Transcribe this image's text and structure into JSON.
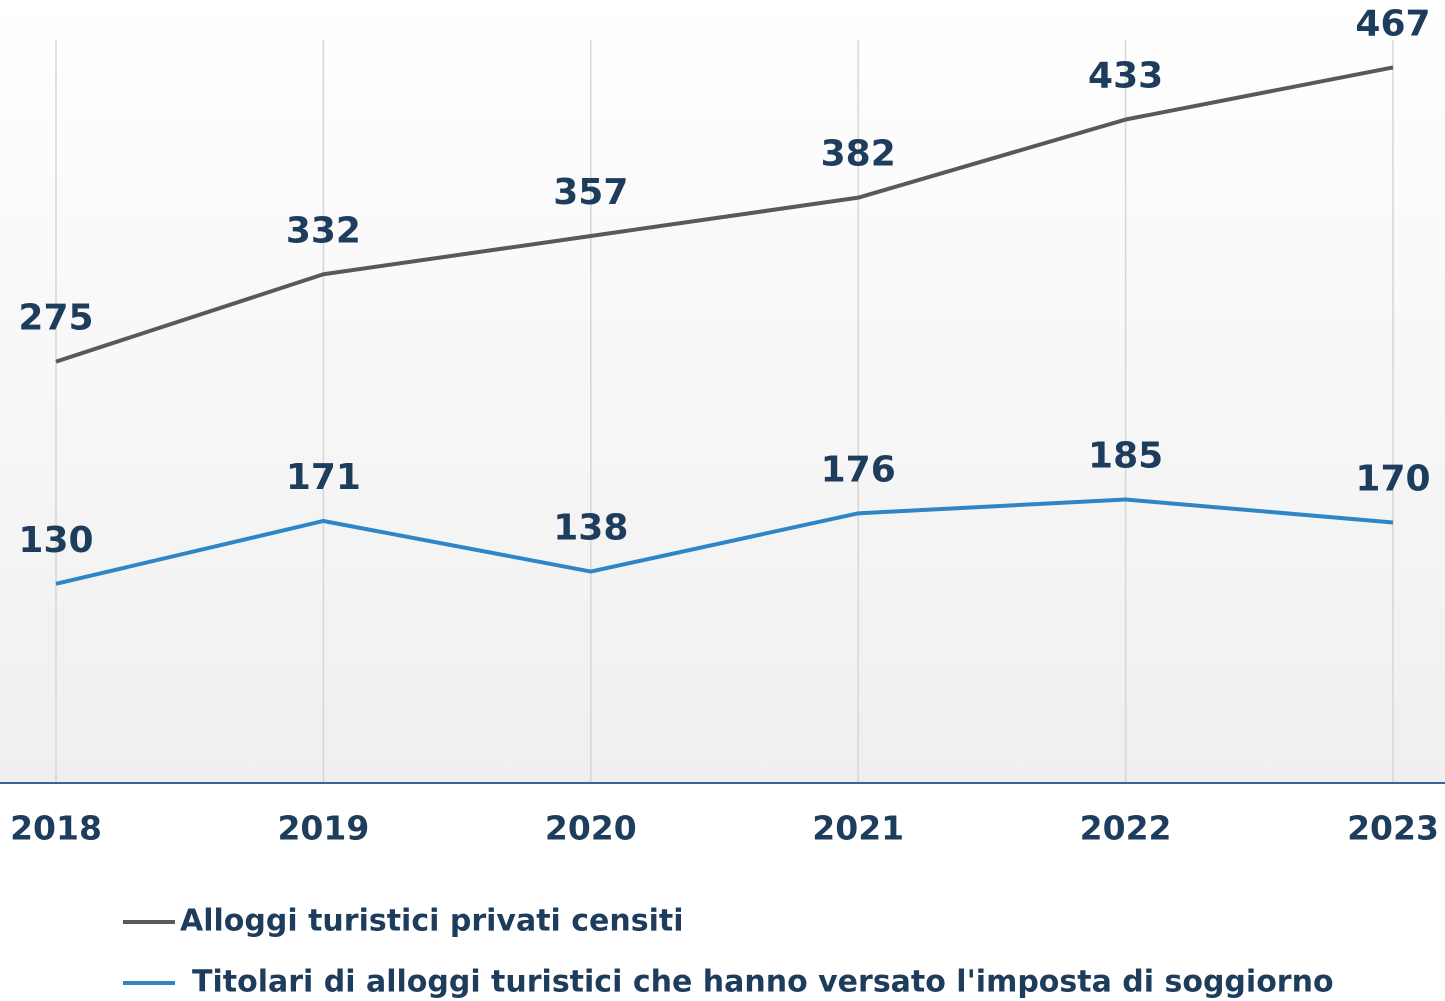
{
  "chart_data": {
    "type": "line",
    "categories": [
      "2018",
      "2019",
      "2020",
      "2021",
      "2022",
      "2023"
    ],
    "series": [
      {
        "name": "Alloggi turistici privati censiti",
        "color": "#595959",
        "values": [
          275,
          332,
          357,
          382,
          433,
          467
        ]
      },
      {
        "name": "Titolari di alloggi turistici che hanno versato l'imposta di soggiorno",
        "color": "#2e86c8",
        "values": [
          130,
          171,
          138,
          176,
          185,
          170
        ]
      }
    ],
    "ylim": [
      0,
      511
    ],
    "grid": true,
    "legend": "bottom"
  }
}
